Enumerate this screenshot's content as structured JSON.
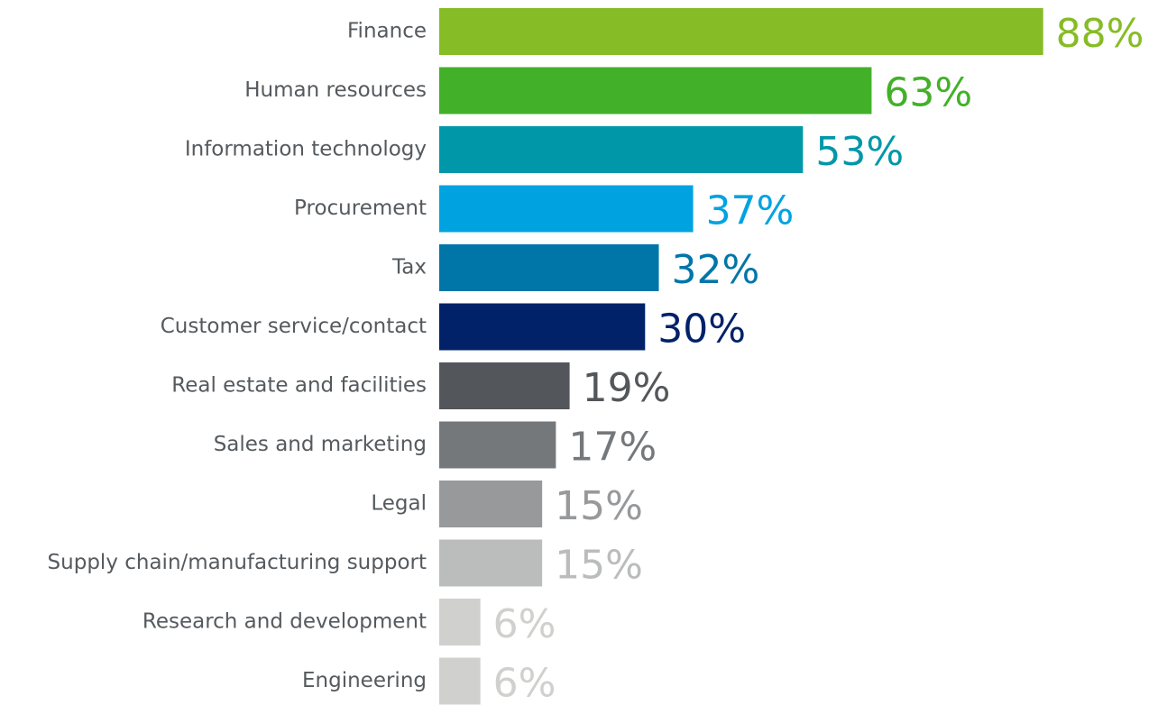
{
  "chart_data": {
    "type": "bar",
    "orientation": "horizontal",
    "categories": [
      "Finance",
      "Human resources",
      "Information technology",
      "Procurement",
      "Tax",
      "Customer service/contact",
      "Real estate and facilities",
      "Sales and marketing",
      "Legal",
      "Supply chain/manufacturing support",
      "Research and development",
      "Engineering"
    ],
    "values": [
      88,
      63,
      53,
      37,
      32,
      30,
      19,
      17,
      15,
      15,
      6,
      6
    ],
    "value_labels": [
      "88%",
      "63%",
      "53%",
      "37%",
      "32%",
      "30%",
      "19%",
      "17%",
      "15%",
      "15%",
      "6%",
      "6%"
    ],
    "colors": [
      "#86bc25",
      "#43b02a",
      "#0097a9",
      "#00a3e0",
      "#0076a8",
      "#012169",
      "#53565a",
      "#75787b",
      "#97999b",
      "#bbbcbc",
      "#d0d0ce",
      "#d0d0ce"
    ],
    "xlim": [
      0,
      100
    ]
  }
}
